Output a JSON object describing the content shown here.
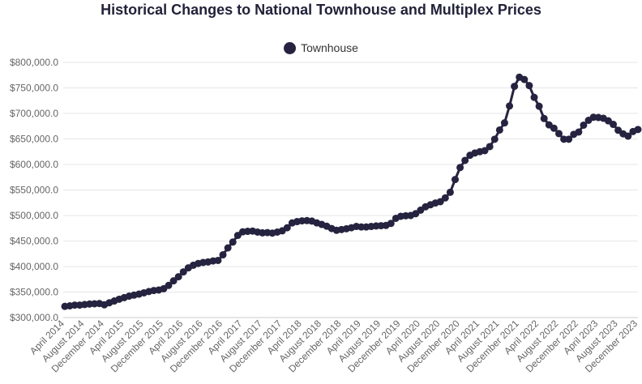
{
  "chart_data": {
    "type": "line",
    "title": "Historical Changes to National Townhouse and Multiplex Prices",
    "xlabel": "",
    "ylabel": "",
    "legend_position": "top",
    "grid": true,
    "ylim": [
      300000,
      800000
    ],
    "y_ticks": [
      300000,
      350000,
      400000,
      450000,
      500000,
      550000,
      600000,
      650000,
      700000,
      750000,
      800000
    ],
    "y_tick_labels": [
      "$300,000.0",
      "$350,000.0",
      "$400,000.0",
      "$450,000.0",
      "$500,000.0",
      "$550,000.0",
      "$600,000.0",
      "$650,000.0",
      "$700,000.0",
      "$750,000.0",
      "$800,000.0"
    ],
    "x_tick_labels": [
      "April 2014",
      "August 2014",
      "December 2014",
      "April 2015",
      "August 2015",
      "December 2015",
      "April 2016",
      "August 2016",
      "December 2016",
      "April 2017",
      "August 2017",
      "December 2017",
      "April 2018",
      "August 2018",
      "December 2018",
      "April 2019",
      "August 2019",
      "December 2019",
      "April 2020",
      "August 2020",
      "December 2020",
      "April 2021",
      "August 2021",
      "December 2021",
      "April 2022",
      "August 2022",
      "December 2022",
      "April 2023",
      "August 2023",
      "December 2023"
    ],
    "x_tick_every": 4,
    "series": [
      {
        "name": "Townhouse",
        "color": "#25233f",
        "values": [
          322000,
          323000,
          324500,
          324500,
          325500,
          326500,
          327000,
          327500,
          325000,
          329000,
          332500,
          336000,
          339000,
          342000,
          344000,
          346000,
          348500,
          351000,
          353000,
          354000,
          356500,
          363000,
          372000,
          380000,
          389500,
          397500,
          402500,
          406000,
          408000,
          409000,
          411000,
          412000,
          423000,
          436500,
          448000,
          461000,
          468000,
          469000,
          469500,
          467500,
          466000,
          466500,
          465500,
          467500,
          470000,
          476000,
          485500,
          488000,
          489500,
          490000,
          489000,
          485500,
          482500,
          479000,
          474500,
          471000,
          472500,
          474000,
          476000,
          478500,
          477500,
          477500,
          478500,
          479500,
          480000,
          480500,
          484500,
          494500,
          498500,
          499500,
          500000,
          503500,
          510500,
          517000,
          521000,
          524500,
          527000,
          534500,
          545500,
          570500,
          594000,
          608000,
          618000,
          622500,
          625000,
          627000,
          635000,
          649500,
          667500,
          681500,
          714500,
          753000,
          771000,
          766500,
          754500,
          731500,
          714000,
          690000,
          677500,
          671000,
          660500,
          649500,
          649500,
          659000,
          663500,
          677000,
          686500,
          692500,
          692000,
          690500,
          685500,
          678500,
          667000,
          660000,
          655500,
          664500,
          668500
        ]
      }
    ]
  }
}
